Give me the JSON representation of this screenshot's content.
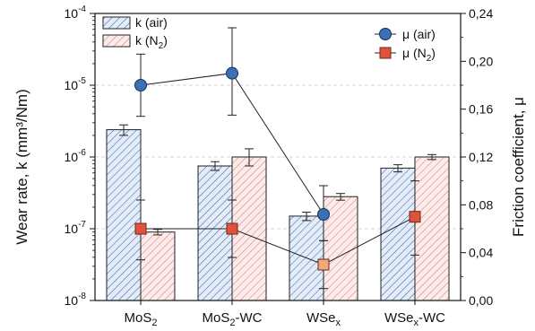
{
  "chart_data": {
    "type": "bar",
    "categories": [
      "MoS2",
      "MoS2-WC",
      "WSex",
      "WSex-WC"
    ],
    "category_labels": [
      {
        "main": "MoS",
        "sub": "2",
        "suffix": ""
      },
      {
        "main": "MoS",
        "sub": "2",
        "suffix": "-WC"
      },
      {
        "main": "WSe",
        "sub": "x",
        "suffix": ""
      },
      {
        "main": "WSe",
        "sub": "x",
        "suffix": "-WC"
      }
    ],
    "left_axis": {
      "label": "Wear  rate, k (mm³/Nm)",
      "scale": "log",
      "range": [
        1e-08,
        0.0001
      ],
      "ticks": [
        {
          "value": 1e-08,
          "base": "10",
          "exp": "-8"
        },
        {
          "value": 1e-07,
          "base": "10",
          "exp": "-7"
        },
        {
          "value": 1e-06,
          "base": "10",
          "exp": "-6"
        },
        {
          "value": 1e-05,
          "base": "10",
          "exp": "-5"
        },
        {
          "value": 0.0001,
          "base": "10",
          "exp": "-4"
        }
      ]
    },
    "right_axis": {
      "label": "Friction coefficient, μ",
      "scale": "linear",
      "range": [
        0,
        0.24
      ],
      "ticks": [
        {
          "value": 0,
          "label": "0,00"
        },
        {
          "value": 0.04,
          "label": "0,04"
        },
        {
          "value": 0.08,
          "label": "0,08"
        },
        {
          "value": 0.12,
          "label": "0,12"
        },
        {
          "value": 0.16,
          "label": "0,16"
        },
        {
          "value": 0.2,
          "label": "0,20"
        },
        {
          "value": 0.24,
          "label": "0,24"
        }
      ]
    },
    "bar_series": [
      {
        "name": "k (air)",
        "name_main": "k (air)",
        "name_sub": "",
        "name_suffix": "",
        "color": "#2b5aa8",
        "fill": "#e3ecf7",
        "values": [
          2.4e-06,
          7.5e-07,
          1.5e-07,
          7e-07
        ],
        "err_low": [
          2e-06,
          6.5e-07,
          1.3e-07,
          6.2e-07
        ],
        "err_high": [
          2.8e-06,
          8.6e-07,
          1.7e-07,
          7.8e-07
        ]
      },
      {
        "name": "k (N2)",
        "name_main": "k (N",
        "name_sub": "2",
        "name_suffix": ")",
        "color": "#d9736b",
        "fill": "#fbeceb",
        "values": [
          9e-08,
          1e-06,
          2.8e-07,
          1e-06
        ],
        "err_low": [
          8.2e-08,
          7.5e-07,
          2.5e-07,
          9.2e-07
        ],
        "err_high": [
          9.8e-08,
          1.3e-06,
          3.1e-07,
          1.08e-06
        ]
      }
    ],
    "line_series": [
      {
        "name": "μ (air)",
        "name_main": "μ (air)",
        "name_sub": "",
        "name_suffix": "",
        "marker": "circle",
        "color": "#3b6fb6",
        "values": [
          0.18,
          0.19,
          0.072,
          null
        ],
        "err_low": [
          0.154,
          0.155,
          0.05,
          null
        ],
        "err_high": [
          0.206,
          0.228,
          0.096,
          null
        ]
      },
      {
        "name": "μ (N2)",
        "name_main": "μ (N",
        "name_sub": "2",
        "name_suffix": ")",
        "marker": "square",
        "color": "#e0523a",
        "values": [
          0.06,
          0.06,
          0.03,
          0.07
        ],
        "err_low": [
          0.034,
          0.036,
          0.01,
          0.038
        ],
        "err_high": [
          0.084,
          0.084,
          0.05,
          0.1
        ]
      }
    ],
    "grid": {
      "horizontal_dashed": true
    },
    "legend_placement": [
      "top-left",
      "top-right"
    ]
  }
}
